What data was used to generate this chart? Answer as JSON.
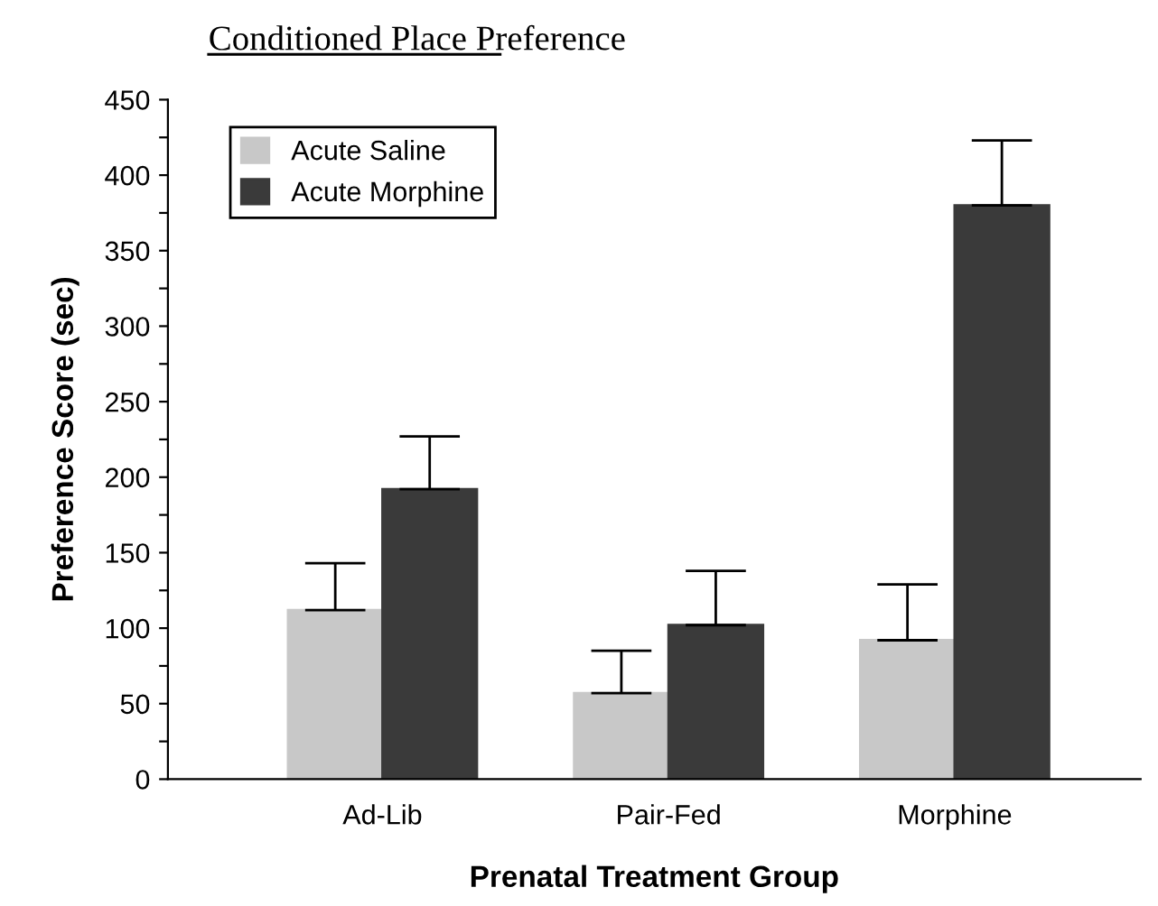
{
  "chart_data": {
    "type": "bar",
    "title": "Conditioned Place Preference",
    "xlabel": "Prenatal Treatment Group",
    "ylabel": "Preference Score (sec)",
    "categories": [
      "Ad-Lib",
      "Pair-Fed",
      "Morphine"
    ],
    "series": [
      {
        "name": "Acute Saline",
        "color": "#c8c8c8",
        "values": [
          112,
          57,
          92
        ],
        "errors": [
          [
            112,
            143
          ],
          [
            57,
            85
          ],
          [
            92,
            129
          ]
        ]
      },
      {
        "name": "Acute Morphine",
        "color": "#3a3a3a",
        "values": [
          192,
          102,
          380
        ],
        "errors": [
          [
            192,
            227
          ],
          [
            102,
            138
          ],
          [
            380,
            423
          ]
        ]
      }
    ],
    "ylim": [
      0,
      450
    ],
    "yticks": [
      0,
      {
        "value": 25,
        "label": null
      },
      50,
      {
        "value": 75,
        "label": null
      },
      100,
      {
        "value": 125,
        "label": null
      },
      150,
      {
        "value": 175,
        "label": null
      },
      200,
      {
        "value": 225,
        "label": null
      },
      250,
      {
        "value": 275,
        "label": null
      },
      300,
      {
        "value": 325,
        "label": null
      },
      350,
      {
        "value": 375,
        "label": null
      },
      400,
      {
        "value": 425,
        "label": null
      },
      450
    ],
    "grid": false,
    "legend": "top left"
  }
}
